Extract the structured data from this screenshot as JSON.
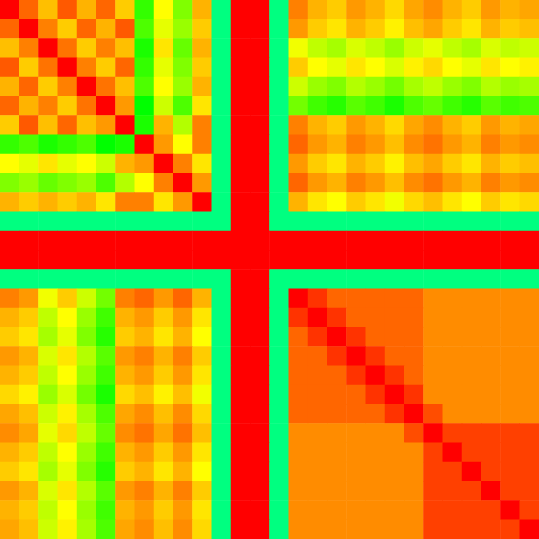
{
  "chart_data": {
    "type": "heatmap",
    "tick_labels": false,
    "zlim": [
      0,
      100
    ],
    "cells": [
      [
        100,
        92,
        85,
        93,
        86,
        92,
        84,
        64,
        80,
        70,
        86,
        50,
        100,
        100,
        50,
        90,
        86,
        84,
        88,
        86,
        83,
        87,
        89,
        86,
        84,
        88,
        86,
        87
      ],
      [
        92,
        100,
        90,
        84,
        92,
        86,
        93,
        66,
        78,
        72,
        84,
        50,
        100,
        100,
        50,
        88,
        84,
        82,
        86,
        84,
        81,
        85,
        87,
        84,
        82,
        86,
        84,
        85
      ],
      [
        85,
        90,
        100,
        91,
        84,
        90,
        85,
        62,
        82,
        68,
        86,
        50,
        100,
        100,
        50,
        79,
        75,
        73,
        77,
        75,
        72,
        76,
        78,
        75,
        73,
        77,
        75,
        76
      ],
      [
        93,
        84,
        91,
        100,
        90,
        84,
        92,
        64,
        78,
        70,
        84,
        50,
        100,
        100,
        50,
        84,
        80,
        78,
        82,
        80,
        77,
        81,
        83,
        80,
        78,
        82,
        80,
        81
      ],
      [
        86,
        92,
        84,
        90,
        100,
        91,
        85,
        66,
        80,
        72,
        86,
        50,
        100,
        100,
        50,
        76,
        72,
        70,
        74,
        72,
        69,
        73,
        75,
        72,
        70,
        74,
        72,
        73
      ],
      [
        92,
        86,
        90,
        84,
        91,
        100,
        88,
        60,
        76,
        66,
        82,
        50,
        100,
        100,
        50,
        69,
        65,
        63,
        67,
        65,
        62,
        66,
        68,
        65,
        63,
        67,
        65,
        66
      ],
      [
        84,
        93,
        85,
        92,
        85,
        88,
        100,
        62,
        86,
        74,
        90,
        50,
        100,
        100,
        50,
        90,
        86,
        84,
        88,
        86,
        83,
        87,
        89,
        86,
        84,
        88,
        86,
        87
      ],
      [
        64,
        66,
        62,
        64,
        66,
        60,
        62,
        100,
        88,
        80,
        90,
        50,
        100,
        100,
        50,
        92,
        88,
        86,
        90,
        88,
        85,
        89,
        91,
        88,
        86,
        90,
        88,
        89
      ],
      [
        80,
        78,
        82,
        78,
        80,
        76,
        86,
        88,
        100,
        90,
        82,
        50,
        100,
        100,
        50,
        88,
        84,
        82,
        86,
        84,
        81,
        85,
        87,
        84,
        82,
        86,
        84,
        85
      ],
      [
        70,
        72,
        68,
        70,
        72,
        66,
        74,
        80,
        90,
        100,
        88,
        50,
        100,
        100,
        50,
        92,
        88,
        86,
        90,
        88,
        85,
        89,
        91,
        88,
        86,
        90,
        88,
        89
      ],
      [
        86,
        84,
        86,
        84,
        86,
        82,
        90,
        90,
        82,
        88,
        100,
        50,
        100,
        100,
        50,
        86,
        82,
        80,
        84,
        82,
        79,
        83,
        85,
        82,
        80,
        84,
        82,
        83
      ],
      [
        50,
        50,
        50,
        50,
        50,
        50,
        50,
        50,
        50,
        50,
        50,
        50,
        100,
        100,
        50,
        50,
        50,
        50,
        50,
        50,
        50,
        50,
        50,
        50,
        50,
        50,
        50,
        50
      ],
      [
        100,
        100,
        100,
        100,
        100,
        100,
        100,
        100,
        100,
        100,
        100,
        100,
        100,
        100,
        100,
        100,
        100,
        100,
        100,
        100,
        100,
        100,
        100,
        100,
        100,
        100,
        100,
        100
      ],
      [
        100,
        100,
        100,
        100,
        100,
        100,
        100,
        100,
        100,
        100,
        100,
        100,
        100,
        100,
        100,
        100,
        100,
        100,
        100,
        100,
        100,
        100,
        100,
        100,
        100,
        100,
        100,
        100
      ],
      [
        50,
        50,
        50,
        50,
        50,
        50,
        50,
        50,
        50,
        50,
        50,
        50,
        100,
        100,
        50,
        50,
        50,
        50,
        50,
        50,
        50,
        50,
        50,
        50,
        50,
        50,
        50,
        50
      ],
      [
        90,
        88,
        79,
        84,
        76,
        69,
        90,
        92,
        88,
        92,
        86,
        50,
        100,
        100,
        50,
        100,
        96,
        92,
        92,
        92,
        92,
        92,
        89,
        89,
        89,
        89,
        89,
        89
      ],
      [
        86,
        84,
        75,
        80,
        72,
        65,
        86,
        88,
        84,
        88,
        82,
        50,
        100,
        100,
        50,
        96,
        100,
        96,
        92,
        92,
        92,
        92,
        89,
        89,
        89,
        89,
        89,
        89
      ],
      [
        84,
        82,
        73,
        78,
        70,
        63,
        84,
        86,
        82,
        86,
        80,
        50,
        100,
        100,
        50,
        92,
        96,
        100,
        96,
        92,
        92,
        92,
        89,
        89,
        89,
        89,
        89,
        89
      ],
      [
        88,
        86,
        77,
        82,
        74,
        67,
        88,
        90,
        86,
        90,
        84,
        50,
        100,
        100,
        50,
        92,
        92,
        96,
        100,
        96,
        92,
        92,
        89,
        89,
        89,
        89,
        89,
        89
      ],
      [
        86,
        84,
        75,
        80,
        72,
        65,
        86,
        88,
        84,
        88,
        82,
        50,
        100,
        100,
        50,
        92,
        92,
        92,
        96,
        100,
        96,
        92,
        89,
        89,
        89,
        89,
        89,
        89
      ],
      [
        83,
        81,
        72,
        77,
        69,
        62,
        83,
        85,
        81,
        85,
        79,
        50,
        100,
        100,
        50,
        92,
        92,
        92,
        92,
        96,
        100,
        96,
        89,
        89,
        89,
        89,
        89,
        89
      ],
      [
        87,
        85,
        76,
        81,
        73,
        66,
        87,
        89,
        85,
        89,
        83,
        50,
        100,
        100,
        50,
        92,
        92,
        92,
        92,
        92,
        96,
        100,
        94,
        89,
        89,
        89,
        89,
        89
      ],
      [
        89,
        87,
        78,
        83,
        75,
        68,
        89,
        91,
        87,
        91,
        85,
        50,
        100,
        100,
        50,
        89,
        89,
        89,
        89,
        89,
        89,
        94,
        100,
        95,
        95,
        95,
        95,
        95
      ],
      [
        86,
        84,
        75,
        80,
        72,
        65,
        86,
        88,
        84,
        88,
        82,
        50,
        100,
        100,
        50,
        89,
        89,
        89,
        89,
        89,
        89,
        89,
        95,
        100,
        95,
        95,
        95,
        95
      ],
      [
        84,
        82,
        73,
        78,
        70,
        63,
        84,
        86,
        82,
        86,
        80,
        50,
        100,
        100,
        50,
        89,
        89,
        89,
        89,
        89,
        89,
        89,
        95,
        95,
        100,
        95,
        95,
        95
      ],
      [
        88,
        86,
        77,
        82,
        74,
        67,
        88,
        90,
        86,
        90,
        84,
        50,
        100,
        100,
        50,
        89,
        89,
        89,
        89,
        89,
        89,
        89,
        95,
        95,
        95,
        100,
        95,
        95
      ],
      [
        86,
        84,
        75,
        80,
        72,
        65,
        86,
        88,
        84,
        88,
        82,
        50,
        100,
        100,
        50,
        89,
        89,
        89,
        89,
        89,
        89,
        89,
        95,
        95,
        95,
        95,
        100,
        95
      ],
      [
        87,
        85,
        76,
        81,
        73,
        66,
        87,
        89,
        85,
        89,
        83,
        50,
        100,
        100,
        50,
        89,
        89,
        89,
        89,
        89,
        89,
        89,
        95,
        95,
        95,
        95,
        95,
        100
      ]
    ]
  }
}
